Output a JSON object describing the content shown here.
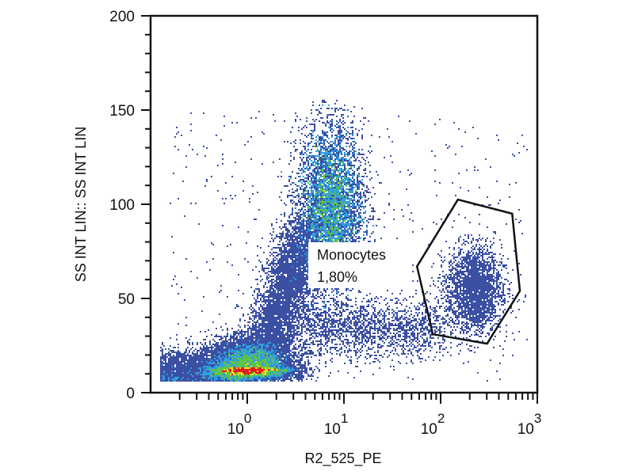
{
  "chart_data": {
    "type": "heatmap",
    "subtype": "flow-cytometry density dot plot",
    "title": "",
    "xlabel": "R2_525_PE",
    "ylabel": "SS INT LIN:: SS INT LIN",
    "x_scale": "log",
    "xlim": [
      0.1,
      1000
    ],
    "x_ticks": [
      1,
      10,
      100,
      1000
    ],
    "x_tick_labels": [
      {
        "base": "10",
        "exp": "0"
      },
      {
        "base": "10",
        "exp": "1"
      },
      {
        "base": "10",
        "exp": "2"
      },
      {
        "base": "10",
        "exp": "3"
      }
    ],
    "y_scale": "linear",
    "ylim": [
      0,
      200
    ],
    "y_ticks": [
      0,
      50,
      100,
      150,
      200
    ],
    "y_tick_labels": [
      "0",
      "50",
      "100",
      "150",
      "200"
    ],
    "grid": false,
    "colormap": [
      "#3b4fa3",
      "#2f9fe0",
      "#5fc24a",
      "#f0e21a",
      "#e41b1b"
    ],
    "populations": [
      {
        "center_x": 1.0,
        "center_y": 13,
        "relative_density": "highest"
      },
      {
        "center_x": 7,
        "center_y": 98,
        "relative_density": "high"
      },
      {
        "center_x": 220,
        "center_y": 55,
        "relative_density": "low"
      }
    ],
    "gate": {
      "name": "Monocytes",
      "percent": "1,80%",
      "polygon": [
        [
          151,
          102.5
        ],
        [
          550,
          95
        ],
        [
          660,
          54
        ],
        [
          302,
          26
        ],
        [
          83,
          31
        ],
        [
          57,
          67
        ]
      ],
      "color": "#111111"
    }
  }
}
